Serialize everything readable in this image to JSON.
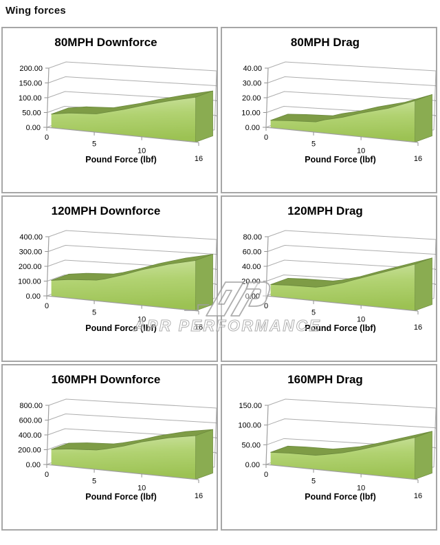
{
  "page_title": "Wing forces",
  "watermark": {
    "logo": "apr-logo",
    "text": "APR PERFORMANCE"
  },
  "axis_style": {
    "grid_color": "#adadad",
    "axis_color": "#9f9f9f",
    "tick_color": "#8f8f8f",
    "area_top_color": "#7e9c46",
    "area_edge_color": "#69873b",
    "area_cap_color": "#8aac51",
    "area_gradient": [
      "#cbe29f",
      "#b1d271",
      "#9cc253"
    ]
  },
  "chart_data": [
    {
      "type": "area",
      "title": "80MPH Downforce",
      "xlabel": "Pound Force (lbf)",
      "x": [
        0,
        2,
        5,
        6,
        8,
        10,
        13,
        16
      ],
      "values": [
        46,
        56,
        62,
        70,
        86,
        105,
        130,
        152
      ],
      "ylim": [
        0,
        200
      ],
      "xmax": 16,
      "y_ticks": [
        "0.00",
        "50.00",
        "100.00",
        "150.00",
        "200.00"
      ],
      "x_ticks": [
        0,
        5,
        10,
        16
      ],
      "x_tick_labels": [
        "0",
        "5",
        "10",
        "16"
      ],
      "grid": true,
      "legend": "none"
    },
    {
      "type": "area",
      "title": "80MPH Drag",
      "xlabel": "Pound Force (lbf)",
      "x": [
        0,
        2,
        5,
        6,
        8,
        10,
        13,
        16
      ],
      "values": [
        5,
        6,
        7,
        9,
        12,
        16,
        21,
        28
      ],
      "ylim": [
        0,
        40
      ],
      "xmax": 16,
      "y_ticks": [
        "0.00",
        "10.00",
        "20.00",
        "30.00",
        "40.00"
      ],
      "x_ticks": [
        0,
        5,
        10,
        16
      ],
      "x_tick_labels": [
        "0",
        "5",
        "10",
        "16"
      ],
      "grid": true,
      "legend": "none"
    },
    {
      "type": "area",
      "title": "120MPH Downforce",
      "xlabel": "Pound Force (lbf)",
      "x": [
        0,
        2,
        5,
        6,
        8,
        10,
        13,
        16
      ],
      "values": [
        108,
        126,
        140,
        155,
        195,
        240,
        296,
        340
      ],
      "ylim": [
        0,
        400
      ],
      "xmax": 16,
      "y_ticks": [
        "0.00",
        "100.00",
        "200.00",
        "300.00",
        "400.00"
      ],
      "x_ticks": [
        0,
        5,
        10,
        16
      ],
      "x_tick_labels": [
        "0",
        "5",
        "10",
        "16"
      ],
      "grid": true,
      "legend": "none"
    },
    {
      "type": "area",
      "title": "120MPH Drag",
      "xlabel": "Pound Force (lbf)",
      "x": [
        0,
        2,
        5,
        6,
        8,
        10,
        13,
        16
      ],
      "values": [
        16,
        17.5,
        18.5,
        21,
        28,
        37,
        50,
        63
      ],
      "ylim": [
        0,
        80
      ],
      "xmax": 16,
      "y_ticks": [
        "0.00",
        "20.00",
        "40.00",
        "60.00",
        "80.00"
      ],
      "x_ticks": [
        0,
        5,
        10,
        16
      ],
      "x_tick_labels": [
        "0",
        "5",
        "10",
        "16"
      ],
      "grid": true,
      "legend": "none"
    },
    {
      "type": "area",
      "title": "160MPH Downforce",
      "xlabel": "Pound Force (lbf)",
      "x": [
        0,
        2,
        5,
        6,
        8,
        10,
        13,
        16
      ],
      "values": [
        210,
        240,
        262,
        288,
        352,
        432,
        525,
        590
      ],
      "ylim": [
        0,
        800
      ],
      "xmax": 16,
      "y_ticks": [
        "0.00",
        "200.00",
        "400.00",
        "600.00",
        "800.00"
      ],
      "x_ticks": [
        0,
        5,
        10,
        16
      ],
      "x_tick_labels": [
        "0",
        "5",
        "10",
        "16"
      ],
      "grid": true,
      "legend": "none"
    },
    {
      "type": "area",
      "title": "160MPH Drag",
      "xlabel": "Pound Force (lbf)",
      "x": [
        0,
        2,
        5,
        6,
        8,
        10,
        13,
        16
      ],
      "values": [
        32,
        34.5,
        36,
        40,
        49,
        62,
        84,
        106
      ],
      "ylim": [
        0,
        150
      ],
      "xmax": 16,
      "y_ticks": [
        "0.00",
        "50.00",
        "100.00",
        "150.00"
      ],
      "x_ticks": [
        0,
        5,
        10,
        16
      ],
      "x_tick_labels": [
        "0",
        "5",
        "10",
        "16"
      ],
      "grid": true,
      "legend": "none"
    }
  ]
}
